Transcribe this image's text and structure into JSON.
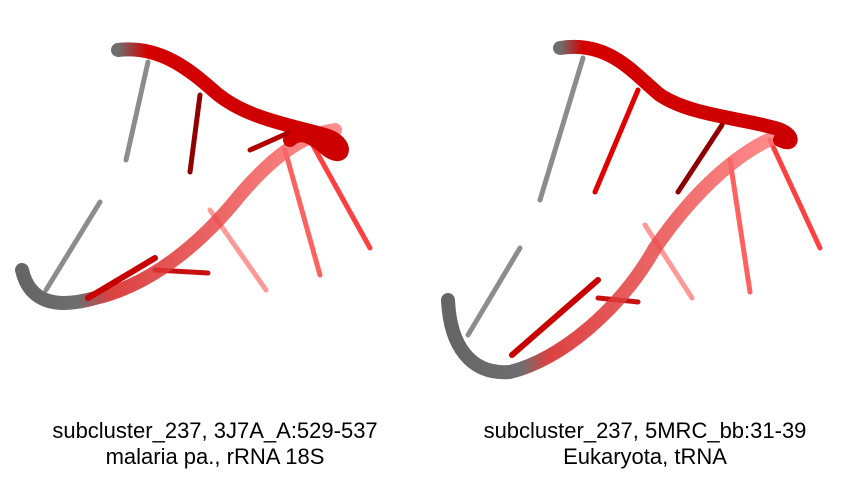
{
  "colors": {
    "strand_red": "#e00000",
    "strand_dark_red": "#a00000",
    "strand_gray": "#505050",
    "base_gray": "#8c8c8c",
    "background": "#ffffff"
  },
  "panels": [
    {
      "caption_line1": "subcluster_237, 3J7A_A:529-537",
      "caption_line2": "malaria pa., rRNA 18S"
    },
    {
      "caption_line1": "subcluster_237, 5MRC_bb:31-39",
      "caption_line2": "Eukaryota, tRNA"
    }
  ]
}
